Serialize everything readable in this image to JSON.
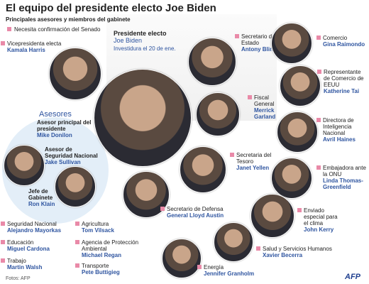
{
  "header": {
    "title": "El equipo del presidente electo Joe Biden",
    "subtitle": "Principales asesores y miembros del gabinete",
    "legend": "Necesita confirmación del Senado"
  },
  "president": {
    "role": "Presidente electo",
    "name": "Joe Biden",
    "note": "Investidura el 20 de ene."
  },
  "advisers_heading": "Asesores",
  "people": [
    {
      "role": "Vicepresidenta electa",
      "name": "Kamala Harris",
      "senate": true
    },
    {
      "role": "Secretario de Estado",
      "name": "Antony Blinken",
      "senate": true
    },
    {
      "role": "Comercio",
      "name": "Gina Raimondo",
      "senate": true
    },
    {
      "role": "Representante de Comercio de EEUU",
      "name": "Katherine Tai",
      "senate": true
    },
    {
      "role": "Fiscal General",
      "name": "Merrick Garland",
      "senate": true
    },
    {
      "role": "Directora de Inteligencia Nacional",
      "name": "Avril Haines",
      "senate": true
    },
    {
      "role": "Secretaria del Tesoro",
      "name": "Janet Yellen",
      "senate": true
    },
    {
      "role": "Embajadora ante la ONU",
      "name": "Linda Thomas-Greenfield",
      "senate": true
    },
    {
      "role": "Asesor principal del presidente",
      "name": "Mike Donilon",
      "senate": false
    },
    {
      "role": "Asesor de Seguridad Nacional",
      "name": "Jake Sullivan",
      "senate": false
    },
    {
      "role": "Jefe de Gabinete",
      "name": "Ron Klain",
      "senate": false
    },
    {
      "role": "Secretario de Defensa",
      "name": "General Lloyd Austin",
      "senate": true
    },
    {
      "role": "Enviado especial para el clima",
      "name": "John Kerry",
      "senate": true
    },
    {
      "role": "Salud y Servicios Humanos",
      "name": "Xavier Becerra",
      "senate": true
    },
    {
      "role": "Energía",
      "name": "Jennifer Granholm",
      "senate": true
    },
    {
      "role": "Seguridad Nacional",
      "name": "Alejandro Mayorkas",
      "senate": true
    },
    {
      "role": "Educación",
      "name": "Miguel Cardona",
      "senate": true
    },
    {
      "role": "Trabajo",
      "name": "Martin Walsh",
      "senate": true
    },
    {
      "role": "Agricultura",
      "name": "Tom Vilsack",
      "senate": true
    },
    {
      "role": "Agencia de Protección Ambiental",
      "name": "Michael Regan",
      "senate": true
    },
    {
      "role": "Transporte",
      "name": "Pete Buttigieg",
      "senate": true
    }
  ],
  "footer": {
    "credit": "Fotos: AFP",
    "logo": "AFP"
  }
}
